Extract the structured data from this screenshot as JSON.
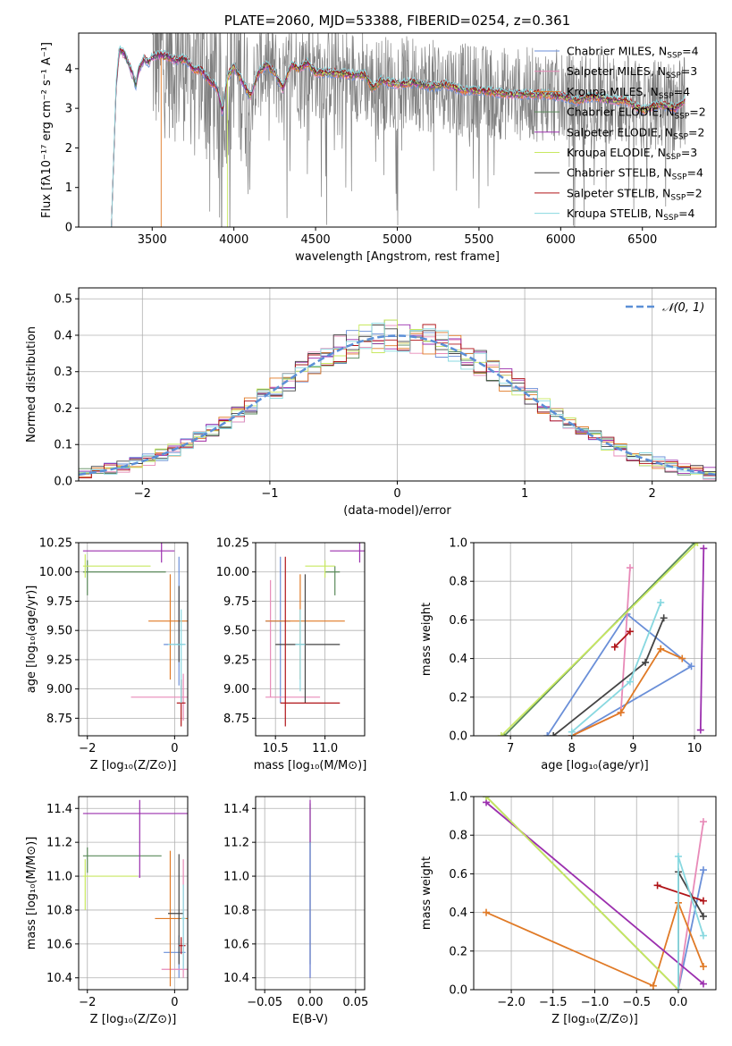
{
  "colors": {
    "Chabrier MILES": "#6a8fd8",
    "Salpeter MILES": "#e88ab8",
    "Kroupa MILES": "#e07a26",
    "Chabrier ELODIE": "#5a8a5a",
    "Salpeter ELODIE": "#9b2fae",
    "Kroupa ELODIE": "#c8e860",
    "Chabrier STELIB": "#444444",
    "Salpeter STELIB": "#b01418",
    "Kroupa STELIB": "#88d8e0",
    "data": "#808080",
    "normal": "#5b8fd6"
  },
  "chart_data": [
    {
      "id": "spectrum",
      "type": "line",
      "title": "PLATE=2060, MJD=53388, FIBERID=0254, z=0.361",
      "xlabel": "wavelength [Angstrom, rest frame]",
      "ylabel": "Flux [fλ10⁻¹⁷ erg cm⁻² s⁻¹ A⁻¹]",
      "xlim": [
        3050,
        6950
      ],
      "ylim": [
        0,
        4.9
      ],
      "xticks": [
        "3500",
        "4000",
        "4500",
        "5000",
        "5500",
        "6000",
        "6500"
      ],
      "yticks": [
        "0",
        "1",
        "2",
        "3",
        "4"
      ],
      "legend_position": "upper right",
      "legend": [
        {
          "label": "Chabrier MILES, N",
          "sub": "SSP",
          "suffix": "=4",
          "color": "Chabrier MILES"
        },
        {
          "label": "Salpeter MILES, N",
          "sub": "SSP",
          "suffix": "=3",
          "color": "Salpeter MILES"
        },
        {
          "label": "Kroupa MILES, N",
          "sub": "SSP",
          "suffix": "=4",
          "color": "Kroupa MILES"
        },
        {
          "label": "Chabrier ELODIE, N",
          "sub": "SSP",
          "suffix": "=2",
          "color": "Chabrier ELODIE"
        },
        {
          "label": "Salpeter ELODIE, N",
          "sub": "SSP",
          "suffix": "=2",
          "color": "Salpeter ELODIE"
        },
        {
          "label": "Kroupa ELODIE, N",
          "sub": "SSP",
          "suffix": "=3",
          "color": "Kroupa ELODIE"
        },
        {
          "label": "Chabrier STELIB, N",
          "sub": "SSP",
          "suffix": "=4",
          "color": "Chabrier STELIB"
        },
        {
          "label": "Salpeter STELIB, N",
          "sub": "SSP",
          "suffix": "=2",
          "color": "Salpeter STELIB"
        },
        {
          "label": "Kroupa STELIB, N",
          "sub": "SSP",
          "suffix": "=4",
          "color": "Kroupa STELIB"
        }
      ],
      "model_continuum": {
        "x": [
          3280,
          3300,
          3330,
          3350,
          3380,
          3400,
          3420,
          3450,
          3480,
          3500,
          3550,
          3600,
          3650,
          3700,
          3750,
          3800,
          3850,
          3900,
          3930,
          3960,
          4000,
          4050,
          4100,
          4150,
          4200,
          4250,
          4300,
          4350,
          4400,
          4450,
          4500,
          4600,
          4700,
          4800,
          4850,
          4900,
          5000,
          5100,
          5200,
          5300,
          5400,
          5500,
          5600,
          5700,
          5800,
          5900,
          6000,
          6100,
          6200,
          6300,
          6400,
          6500,
          6600,
          6700,
          6760
        ],
        "y": [
          3.6,
          4.5,
          4.35,
          4.2,
          3.85,
          3.6,
          4.0,
          4.25,
          4.15,
          4.3,
          4.35,
          4.3,
          4.2,
          4.25,
          4.0,
          3.95,
          3.7,
          3.5,
          2.9,
          3.8,
          4.05,
          3.7,
          3.3,
          3.9,
          4.1,
          3.9,
          3.5,
          4.1,
          4.0,
          4.15,
          3.9,
          3.9,
          3.85,
          3.85,
          3.5,
          3.7,
          3.6,
          3.65,
          3.55,
          3.6,
          3.45,
          3.45,
          3.4,
          3.35,
          3.35,
          3.35,
          3.3,
          3.2,
          3.3,
          3.2,
          3.2,
          2.95,
          3.1,
          3.0,
          3.2
        ]
      },
      "model_start_wavelengths": [
        3250,
        3250,
        3555,
        3250,
        3250,
        3960,
        3250,
        3250,
        3250
      ],
      "data_range": [
        3500,
        6760
      ]
    },
    {
      "id": "residuals",
      "type": "histogram",
      "xlabel": "(data-model)/error",
      "ylabel": "Normed distribution",
      "xlim": [
        -2.5,
        2.5
      ],
      "ylim": [
        0,
        0.53
      ],
      "xticks": [
        "−2",
        "−1",
        "0",
        "1",
        "2"
      ],
      "yticks": [
        "0.0",
        "0.1",
        "0.2",
        "0.3",
        "0.4",
        "0.5"
      ],
      "grid": true,
      "legend_position": "upper right",
      "legend_label": "𝒩(0, 1)",
      "bin_width": 0.1,
      "bin_start": -2.5
    },
    {
      "id": "age-vs-Z",
      "type": "scatter",
      "xlabel": "Z [log₁₀(Z/Z⊙)]",
      "ylabel": "age  [log₁₀(age/yr)]",
      "xlim": [
        -2.2,
        0.3
      ],
      "ylim": [
        8.6,
        10.25
      ],
      "xticks": [
        "−2",
        "0"
      ],
      "yticks": [
        "8.75",
        "9.00",
        "9.25",
        "9.50",
        "9.75",
        "10.00",
        "10.25"
      ],
      "grid": true,
      "points": [
        {
          "x": 0.1,
          "y": 9.38,
          "xerr": [
            0.35,
            0.15
          ],
          "yerr": [
            0.35,
            0.75
          ],
          "color": "Chabrier MILES"
        },
        {
          "x": 0.2,
          "y": 8.93,
          "xerr": [
            1.2,
            0.1
          ],
          "yerr": [
            0.2,
            0.2
          ],
          "color": "Salpeter MILES"
        },
        {
          "x": -0.1,
          "y": 9.58,
          "xerr": [
            0.5,
            0.4
          ],
          "yerr": [
            0.5,
            0.4
          ],
          "color": "Kroupa MILES"
        },
        {
          "x": -2.0,
          "y": 10.0,
          "xerr": [
            0.1,
            1.8
          ],
          "yerr": [
            0.2,
            0.1
          ],
          "color": "Chabrier ELODIE"
        },
        {
          "x": -0.3,
          "y": 10.18,
          "xerr": [
            1.8,
            0.3
          ],
          "yerr": [
            0.1,
            0.07
          ],
          "color": "Salpeter ELODIE"
        },
        {
          "x": -2.05,
          "y": 10.05,
          "xerr": [
            0.05,
            1.5
          ],
          "yerr": [
            0.1,
            0.1
          ],
          "color": "Kroupa ELODIE"
        },
        {
          "x": 0.1,
          "y": 9.38,
          "xerr": [
            0.05,
            0.05
          ],
          "yerr": [
            0.15,
            0.5
          ],
          "color": "Chabrier STELIB"
        },
        {
          "x": 0.15,
          "y": 8.88,
          "xerr": [
            0.1,
            0.1
          ],
          "yerr": [
            0.2,
            0.2
          ],
          "color": "Salpeter STELIB"
        },
        {
          "x": 0.15,
          "y": 9.38,
          "xerr": [
            0.3,
            0.1
          ],
          "yerr": [
            0.5,
            0.3
          ],
          "color": "Kroupa STELIB"
        }
      ]
    },
    {
      "id": "age-vs-mass",
      "type": "scatter",
      "xlabel": "mass [log₁₀(M/M⊙)]",
      "ylabel": "",
      "xlim": [
        10.3,
        11.4
      ],
      "ylim": [
        8.6,
        10.25
      ],
      "xticks": [
        "10.5",
        "11.0"
      ],
      "yticks": [
        "8.75",
        "9.00",
        "9.25",
        "9.50",
        "9.75",
        "10.00",
        "10.25"
      ],
      "grid": true,
      "points": [
        {
          "x": 10.55,
          "y": 9.58,
          "xerr": [
            0.15,
            0.1
          ],
          "yerr": [
            0.7,
            0.55
          ],
          "color": "Chabrier MILES"
        },
        {
          "x": 10.45,
          "y": 8.93,
          "xerr": [
            0.05,
            0.5
          ],
          "yerr": [
            0.0,
            1.0
          ],
          "color": "Salpeter MILES"
        },
        {
          "x": 10.75,
          "y": 9.58,
          "xerr": [
            0.35,
            0.45
          ],
          "yerr": [
            0.5,
            0.4
          ],
          "color": "Kroupa MILES"
        },
        {
          "x": 11.1,
          "y": 10.0,
          "xerr": [
            0.1,
            0.05
          ],
          "yerr": [
            0.2,
            0.05
          ],
          "color": "Chabrier ELODIE"
        },
        {
          "x": 11.35,
          "y": 10.18,
          "xerr": [
            0.3,
            0.05
          ],
          "yerr": [
            0.1,
            0.07
          ],
          "color": "Salpeter ELODIE"
        },
        {
          "x": 11.0,
          "y": 10.05,
          "xerr": [
            0.2,
            0.1
          ],
          "yerr": [
            0.1,
            0.05
          ],
          "color": "Kroupa ELODIE"
        },
        {
          "x": 10.8,
          "y": 9.38,
          "xerr": [
            0.3,
            0.35
          ],
          "yerr": [
            0.5,
            0.6
          ],
          "color": "Chabrier STELIB"
        },
        {
          "x": 10.6,
          "y": 8.88,
          "xerr": [
            0.05,
            0.55
          ],
          "yerr": [
            0.2,
            1.25
          ],
          "color": "Salpeter STELIB"
        },
        {
          "x": 10.75,
          "y": 9.38,
          "xerr": [
            0.05,
            0.05
          ],
          "yerr": [
            0.4,
            0.3
          ],
          "color": "Kroupa STELIB"
        }
      ]
    },
    {
      "id": "weight-vs-age",
      "type": "line",
      "xlabel": "age  [log₁₀(age/yr)]",
      "ylabel": "mass weight",
      "xlim": [
        6.4,
        10.35
      ],
      "ylim": [
        0,
        1.0
      ],
      "xticks": [
        "7",
        "8",
        "9",
        "10"
      ],
      "yticks": [
        "0.0",
        "0.2",
        "0.4",
        "0.6",
        "0.8",
        "1.0"
      ],
      "grid": true,
      "series": [
        {
          "color": "Chabrier MILES",
          "x": [
            7.6,
            8.9,
            9.95,
            8.0
          ],
          "y": [
            0.0,
            0.63,
            0.36,
            0.0
          ]
        },
        {
          "color": "Salpeter MILES",
          "x": [
            8.0,
            8.8,
            8.95
          ],
          "y": [
            0.0,
            0.12,
            0.87
          ]
        },
        {
          "color": "Kroupa MILES",
          "x": [
            8.0,
            8.8,
            9.45,
            9.8
          ],
          "y": [
            0.0,
            0.12,
            0.45,
            0.4
          ]
        },
        {
          "color": "Chabrier ELODIE",
          "x": [
            6.9,
            10.0
          ],
          "y": [
            0.0,
            1.0
          ]
        },
        {
          "color": "Salpeter ELODIE",
          "x": [
            10.1,
            10.15
          ],
          "y": [
            0.03,
            0.97
          ]
        },
        {
          "color": "Kroupa ELODIE",
          "x": [
            6.85,
            10.05
          ],
          "y": [
            0.0,
            1.0
          ]
        },
        {
          "color": "Chabrier STELIB",
          "x": [
            7.7,
            9.2,
            9.5
          ],
          "y": [
            0.0,
            0.38,
            0.61
          ]
        },
        {
          "color": "Salpeter STELIB",
          "x": [
            8.7,
            8.95
          ],
          "y": [
            0.46,
            0.54
          ]
        },
        {
          "color": "Kroupa STELIB",
          "x": [
            8.0,
            8.95,
            9.45
          ],
          "y": [
            0.02,
            0.28,
            0.69
          ]
        }
      ]
    },
    {
      "id": "mass-vs-Z",
      "type": "scatter",
      "xlabel": "Z [log₁₀(Z/Z⊙)]",
      "ylabel": "mass [log₁₀(M/M⊙)]",
      "xlim": [
        -2.2,
        0.3
      ],
      "ylim": [
        10.33,
        11.47
      ],
      "xticks": [
        "−2",
        "0"
      ],
      "yticks": [
        "10.4",
        "10.6",
        "10.8",
        "11.0",
        "11.2",
        "11.4"
      ],
      "grid": true,
      "points": [
        {
          "x": 0.1,
          "y": 10.55,
          "xerr": [
            0.35,
            0.15
          ],
          "yerr": [
            0.15,
            0.1
          ],
          "color": "Chabrier MILES"
        },
        {
          "x": 0.2,
          "y": 10.45,
          "xerr": [
            0.5,
            0.1
          ],
          "yerr": [
            0.05,
            0.65
          ],
          "color": "Salpeter MILES"
        },
        {
          "x": -0.1,
          "y": 10.75,
          "xerr": [
            0.35,
            0.4
          ],
          "yerr": [
            0.4,
            0.4
          ],
          "color": "Kroupa MILES"
        },
        {
          "x": -2.0,
          "y": 11.12,
          "xerr": [
            0.1,
            1.7
          ],
          "yerr": [
            0.1,
            0.05
          ],
          "color": "Chabrier ELODIE"
        },
        {
          "x": -0.8,
          "y": 11.37,
          "xerr": [
            1.3,
            1.1
          ],
          "yerr": [
            0.38,
            0.08
          ],
          "color": "Salpeter ELODIE"
        },
        {
          "x": -2.05,
          "y": 11.0,
          "xerr": [
            0.05,
            1.2
          ],
          "yerr": [
            0.2,
            0.1
          ],
          "color": "Kroupa ELODIE"
        },
        {
          "x": 0.1,
          "y": 10.78,
          "xerr": [
            0.25,
            0.1
          ],
          "yerr": [
            0.3,
            0.35
          ],
          "color": "Chabrier STELIB"
        },
        {
          "x": 0.15,
          "y": 10.59,
          "xerr": [
            0.05,
            0.1
          ],
          "yerr": [
            0.05,
            0.05
          ],
          "color": "Salpeter STELIB"
        },
        {
          "x": 0.2,
          "y": 10.75,
          "xerr": [
            0.05,
            0.05
          ],
          "yerr": [
            0.3,
            0.2
          ],
          "color": "Kroupa STELIB"
        }
      ]
    },
    {
      "id": "mass-vs-ebv",
      "type": "scatter",
      "xlabel": "E(B-V)",
      "ylabel": "",
      "xlim": [
        -0.06,
        0.06
      ],
      "ylim": [
        10.33,
        11.47
      ],
      "xticks": [
        "−0.05",
        "0.00",
        "0.05"
      ],
      "yticks": [
        "10.4",
        "10.6",
        "10.8",
        "11.0",
        "11.2",
        "11.4"
      ],
      "grid": true,
      "points": [
        {
          "x": 0.0,
          "y": 11.13,
          "xerr": [
            0,
            0
          ],
          "yerr": [
            0.65,
            0.3
          ],
          "color": "Chabrier ELODIE"
        },
        {
          "x": 0.0,
          "y": 10.9,
          "xerr": [
            0,
            0
          ],
          "yerr": [
            0.5,
            0.55
          ],
          "color": "Salpeter ELODIE"
        },
        {
          "x": 0.0,
          "y": 10.8,
          "xerr": [
            0,
            0
          ],
          "yerr": [
            0.4,
            0.4
          ],
          "color": "Chabrier MILES"
        }
      ]
    },
    {
      "id": "weight-vs-Z",
      "type": "line",
      "xlabel": "Z [log₁₀(Z/Z⊙)]",
      "ylabel": "mass weight",
      "xlim": [
        -2.45,
        0.45
      ],
      "ylim": [
        0,
        1.0
      ],
      "xticks": [
        "−2.0",
        "−1.5",
        "−1.0",
        "−0.5",
        "0.0"
      ],
      "yticks": [
        "0.0",
        "0.2",
        "0.4",
        "0.6",
        "0.8",
        "1.0"
      ],
      "grid": true,
      "series": [
        {
          "color": "Chabrier MILES",
          "x": [
            0.0,
            0.3
          ],
          "y": [
            0.0,
            0.62
          ]
        },
        {
          "color": "Salpeter MILES",
          "x": [
            0.0,
            0.3
          ],
          "y": [
            0.0,
            0.87
          ]
        },
        {
          "color": "Kroupa MILES",
          "x": [
            -2.3,
            -0.3,
            0.0,
            0.3
          ],
          "y": [
            0.4,
            0.02,
            0.45,
            0.12
          ]
        },
        {
          "color": "Chabrier ELODIE",
          "x": [
            -2.3,
            0.0
          ],
          "y": [
            1.0,
            0.0
          ]
        },
        {
          "color": "Salpeter ELODIE",
          "x": [
            -2.3,
            0.3
          ],
          "y": [
            0.97,
            0.03
          ]
        },
        {
          "color": "Kroupa ELODIE",
          "x": [
            -2.3,
            0.0
          ],
          "y": [
            1.0,
            0.0
          ]
        },
        {
          "color": "Chabrier STELIB",
          "x": [
            0.0,
            0.0,
            0.3
          ],
          "y": [
            0.0,
            0.61,
            0.38
          ]
        },
        {
          "color": "Salpeter STELIB",
          "x": [
            -0.25,
            0.3
          ],
          "y": [
            0.54,
            0.46
          ]
        },
        {
          "color": "Kroupa STELIB",
          "x": [
            0.0,
            0.0,
            0.3
          ],
          "y": [
            0.0,
            0.69,
            0.28
          ]
        }
      ]
    }
  ]
}
